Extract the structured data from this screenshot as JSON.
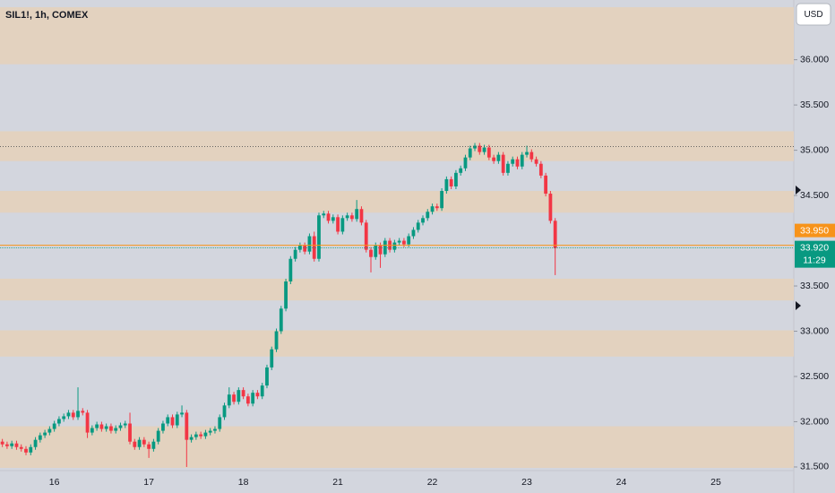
{
  "chart_data": {
    "type": "candlestick",
    "title": "SIL1!, 1h, COMEX",
    "currency": "USD",
    "categories": [
      null,
      null,
      null,
      null,
      null,
      null,
      null,
      null,
      null,
      null,
      null,
      "16",
      null,
      null,
      null,
      null,
      null,
      null,
      null,
      null,
      null,
      null,
      null,
      null,
      null,
      null,
      null,
      null,
      null,
      null,
      null,
      "17",
      null,
      null,
      null,
      null,
      null,
      null,
      null,
      null,
      null,
      null,
      null,
      null,
      null,
      null,
      null,
      null,
      null,
      null,
      null,
      "18",
      null,
      null,
      null,
      null,
      null,
      null,
      null,
      null,
      null,
      null,
      null,
      null,
      null,
      null,
      null,
      null,
      null,
      null,
      null,
      "21",
      null,
      null,
      null,
      null,
      null,
      null,
      null,
      null,
      null,
      null,
      null,
      null,
      null,
      null,
      null,
      null,
      null,
      null,
      null,
      "22",
      null,
      null,
      null,
      null,
      null,
      null,
      null,
      null,
      null,
      null,
      null,
      null,
      null,
      null,
      null,
      null,
      null,
      null,
      null,
      "23",
      null,
      null,
      null,
      null,
      null,
      null,
      null,
      null,
      null,
      null,
      null,
      null,
      null,
      null,
      null,
      null,
      null,
      null,
      null,
      "24",
      null,
      null,
      null,
      null,
      null,
      null,
      null,
      null,
      null,
      null,
      null,
      null,
      null,
      null,
      null,
      null,
      null,
      null,
      null,
      "25",
      null,
      null,
      null,
      null,
      null,
      null,
      null,
      null,
      null,
      null,
      null,
      null,
      null,
      null,
      null,
      null
    ],
    "open": [
      31.78,
      31.75,
      31.73,
      31.76,
      31.72,
      31.7,
      31.66,
      31.72,
      31.8,
      31.85,
      31.88,
      31.92,
      31.98,
      32.03,
      32.06,
      32.1,
      32.05,
      32.12,
      32.1,
      31.88,
      31.93,
      31.97,
      31.92,
      31.95,
      31.9,
      31.93,
      31.96,
      31.98,
      31.78,
      31.72,
      31.8,
      31.75,
      31.7,
      31.78,
      31.9,
      31.98,
      32.05,
      31.96,
      32.08,
      32.1,
      31.8,
      31.83,
      31.86,
      31.84,
      31.88,
      31.9,
      31.92,
      32.05,
      32.18,
      32.3,
      32.22,
      32.35,
      32.28,
      32.2,
      32.32,
      32.28,
      32.4,
      32.6,
      32.8,
      33.0,
      33.25,
      33.55,
      33.8,
      33.9,
      33.95,
      33.88,
      34.05,
      33.8,
      34.28,
      34.3,
      34.22,
      34.26,
      34.1,
      34.25,
      34.28,
      34.24,
      34.35,
      34.2,
      33.9,
      33.82,
      33.95,
      33.85,
      34.0,
      33.9,
      33.98,
      34.0,
      33.96,
      34.05,
      34.12,
      34.2,
      34.25,
      34.32,
      34.38,
      34.36,
      34.55,
      34.68,
      34.6,
      34.75,
      34.8,
      34.92,
      35.02,
      35.05,
      34.98,
      35.03,
      34.92,
      34.88,
      34.95,
      34.75,
      34.85,
      34.9,
      34.82,
      34.95,
      34.98,
      34.9,
      34.85,
      34.72,
      34.52,
      34.22,
      null,
      null,
      null,
      null,
      null,
      null,
      null,
      null,
      null,
      null,
      null,
      null,
      null,
      null,
      null,
      null,
      null,
      null,
      null,
      null,
      null,
      null,
      null,
      null,
      null,
      null,
      null,
      null,
      null,
      null,
      null,
      null,
      null,
      null,
      null,
      null,
      null,
      null,
      null,
      null,
      null,
      null,
      null,
      null,
      null,
      null,
      null,
      null,
      null,
      null
    ],
    "high": [
      31.81,
      31.78,
      31.79,
      31.79,
      31.75,
      31.73,
      31.75,
      31.83,
      31.88,
      31.91,
      31.95,
      32.01,
      32.06,
      32.09,
      32.13,
      32.13,
      32.38,
      32.15,
      32.13,
      31.96,
      32.0,
      32.0,
      31.98,
      31.98,
      31.96,
      31.99,
      32.01,
      32.1,
      31.81,
      31.83,
      31.83,
      31.78,
      31.81,
      31.93,
      32.01,
      32.08,
      32.08,
      32.11,
      32.18,
      32.13,
      31.86,
      31.89,
      31.89,
      31.91,
      31.93,
      31.95,
      32.08,
      32.21,
      32.38,
      32.33,
      32.38,
      32.38,
      32.31,
      32.35,
      32.35,
      32.43,
      32.63,
      32.83,
      33.03,
      33.28,
      33.58,
      33.83,
      33.93,
      33.98,
      33.98,
      34.08,
      34.1,
      34.31,
      34.33,
      34.33,
      34.29,
      34.29,
      34.28,
      34.31,
      34.31,
      34.45,
      34.38,
      34.23,
      33.93,
      33.98,
      33.98,
      34.03,
      34.03,
      34.01,
      34.03,
      34.03,
      34.08,
      34.15,
      34.23,
      34.28,
      34.35,
      34.41,
      34.41,
      34.58,
      34.71,
      34.71,
      34.78,
      34.83,
      34.95,
      35.05,
      35.08,
      35.08,
      35.06,
      35.06,
      34.95,
      34.98,
      34.98,
      34.88,
      34.93,
      34.93,
      34.98,
      35.05,
      35.01,
      34.93,
      34.88,
      34.75,
      34.55,
      34.25,
      null,
      null,
      null,
      null,
      null,
      null,
      null,
      null,
      null,
      null,
      null,
      null,
      null,
      null,
      null,
      null,
      null,
      null,
      null,
      null,
      null,
      null,
      null,
      null,
      null,
      null,
      null,
      null,
      null,
      null,
      null,
      null,
      null,
      null,
      null,
      null,
      null,
      null,
      null,
      null,
      null,
      null,
      null,
      null,
      null,
      null,
      null,
      null,
      null,
      null
    ],
    "low": [
      31.72,
      31.7,
      31.7,
      31.69,
      31.67,
      31.63,
      31.63,
      31.69,
      31.77,
      31.82,
      31.85,
      31.89,
      31.95,
      32.0,
      32.03,
      32.02,
      32.02,
      32.07,
      31.82,
      31.85,
      31.9,
      31.89,
      31.89,
      31.87,
      31.87,
      31.9,
      31.93,
      31.75,
      31.69,
      31.69,
      31.72,
      31.6,
      31.67,
      31.75,
      31.87,
      31.95,
      31.93,
      31.93,
      32.05,
      31.5,
      31.77,
      31.8,
      31.81,
      31.81,
      31.85,
      31.87,
      31.89,
      32.02,
      32.15,
      32.19,
      32.19,
      32.25,
      32.17,
      32.17,
      32.25,
      32.25,
      32.37,
      32.57,
      32.77,
      32.97,
      33.22,
      33.52,
      33.77,
      33.87,
      33.85,
      33.85,
      33.77,
      33.77,
      34.25,
      34.19,
      34.19,
      34.07,
      34.07,
      34.22,
      34.21,
      34.21,
      34.17,
      33.87,
      33.65,
      33.79,
      33.7,
      33.82,
      33.87,
      33.87,
      33.95,
      33.93,
      33.93,
      34.02,
      34.09,
      34.17,
      34.22,
      34.29,
      34.33,
      34.33,
      34.52,
      34.57,
      34.57,
      34.72,
      34.77,
      34.89,
      34.99,
      34.95,
      34.95,
      34.89,
      34.85,
      34.85,
      34.72,
      34.72,
      34.82,
      34.79,
      34.79,
      34.92,
      34.87,
      34.82,
      34.69,
      34.49,
      34.19,
      33.62,
      null,
      null,
      null,
      null,
      null,
      null,
      null,
      null,
      null,
      null,
      null,
      null,
      null,
      null,
      null,
      null,
      null,
      null,
      null,
      null,
      null,
      null,
      null,
      null,
      null,
      null,
      null,
      null,
      null,
      null,
      null,
      null,
      null,
      null,
      null,
      null,
      null,
      null,
      null,
      null,
      null,
      null,
      null,
      null,
      null,
      null,
      null,
      null,
      null,
      null
    ],
    "close": [
      31.75,
      31.73,
      31.76,
      31.72,
      31.7,
      31.66,
      31.72,
      31.8,
      31.85,
      31.88,
      31.92,
      31.98,
      32.03,
      32.06,
      32.1,
      32.05,
      32.12,
      32.1,
      31.88,
      31.93,
      31.97,
      31.92,
      31.95,
      31.9,
      31.93,
      31.96,
      31.98,
      31.78,
      31.72,
      31.8,
      31.75,
      31.7,
      31.78,
      31.9,
      31.98,
      32.05,
      31.96,
      32.08,
      32.1,
      31.8,
      31.83,
      31.86,
      31.84,
      31.88,
      31.9,
      31.92,
      32.05,
      32.18,
      32.3,
      32.22,
      32.35,
      32.28,
      32.2,
      32.32,
      32.28,
      32.4,
      32.6,
      32.8,
      33.0,
      33.25,
      33.55,
      33.8,
      33.9,
      33.95,
      33.88,
      34.05,
      33.8,
      34.28,
      34.3,
      34.22,
      34.26,
      34.1,
      34.25,
      34.28,
      34.24,
      34.35,
      34.2,
      33.9,
      33.82,
      33.95,
      33.85,
      34.0,
      33.9,
      33.98,
      34.0,
      33.96,
      34.05,
      34.12,
      34.2,
      34.25,
      34.32,
      34.38,
      34.36,
      34.55,
      34.68,
      34.6,
      34.75,
      34.8,
      34.92,
      35.02,
      35.05,
      34.98,
      35.03,
      34.92,
      34.88,
      34.95,
      34.75,
      34.85,
      34.9,
      34.82,
      34.95,
      34.98,
      34.9,
      34.85,
      34.72,
      34.52,
      34.22,
      33.92,
      null,
      null,
      null,
      null,
      null,
      null,
      null,
      null,
      null,
      null,
      null,
      null,
      null,
      null,
      null,
      null,
      null,
      null,
      null,
      null,
      null,
      null,
      null,
      null,
      null,
      null,
      null,
      null,
      null,
      null,
      null,
      null,
      null,
      null,
      null,
      null,
      null,
      null,
      null,
      null,
      null,
      null,
      null,
      null,
      null,
      null,
      null,
      null,
      null,
      null
    ],
    "up_color": "#089981",
    "down_color": "#f23645",
    "ylim": [
      31.46,
      36.66
    ],
    "yticks": [
      {
        "value": 31.5,
        "label": "31.500"
      },
      {
        "value": 32,
        "label": "32.000"
      },
      {
        "value": 32.5,
        "label": "32.500"
      },
      {
        "value": 33,
        "label": "33.000"
      },
      {
        "value": 33.5,
        "label": "33.500"
      },
      {
        "value": 34.5,
        "label": "34.500"
      },
      {
        "value": 35,
        "label": "35.000"
      },
      {
        "value": 35.5,
        "label": "35.500"
      },
      {
        "value": 36,
        "label": "36.000"
      }
    ],
    "zones": [
      {
        "from": 35.95,
        "to": 36.58
      },
      {
        "from": 34.88,
        "to": 35.21
      },
      {
        "from": 34.31,
        "to": 34.55
      },
      {
        "from": 33.34,
        "to": 33.58
      },
      {
        "from": 32.72,
        "to": 33.01
      },
      {
        "from": 31.49,
        "to": 31.95
      }
    ],
    "zone_color": "#e3d2bf",
    "reference_line": 35.04,
    "alert_price": {
      "value": 33.95,
      "label": "33.950",
      "color": "#f7931a"
    },
    "last_price": {
      "value": 33.92,
      "label": "33.920",
      "color": "#089981"
    },
    "countdown": "11:29",
    "grid": false
  }
}
